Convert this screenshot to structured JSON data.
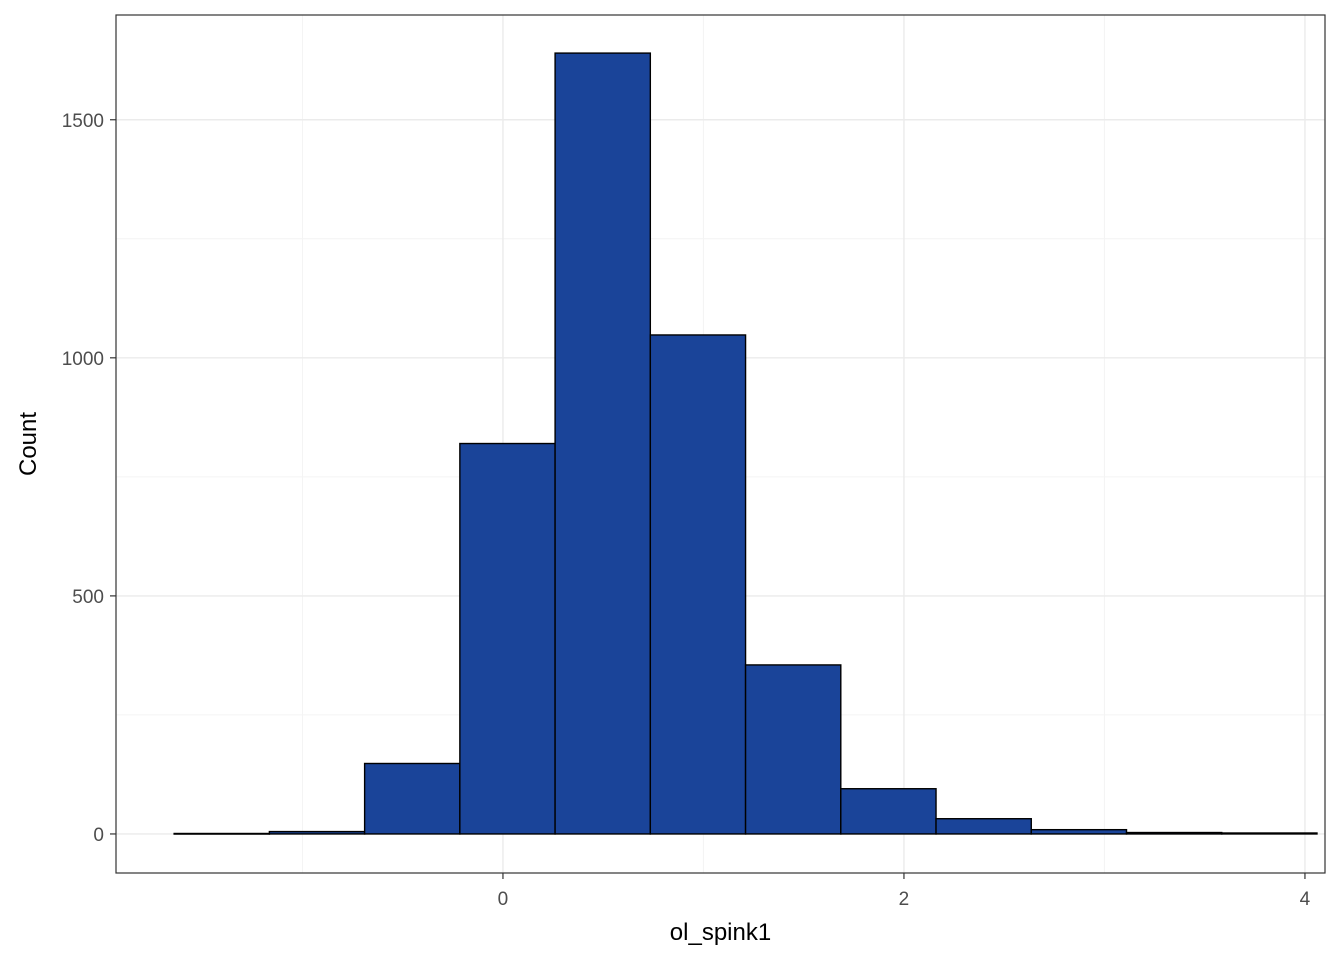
{
  "chart_data": {
    "type": "bar",
    "subtype": "histogram",
    "title": "",
    "xlabel": "ol_spink1",
    "ylabel": "Count",
    "xlim": [
      -1.93,
      4.1
    ],
    "ylim": [
      -82,
      1720
    ],
    "x_ticks": [
      0,
      2,
      4
    ],
    "x_tick_labels": [
      "0",
      "2",
      "4"
    ],
    "y_ticks": [
      0,
      500,
      1000,
      1500
    ],
    "y_tick_labels": [
      "0",
      "500",
      "1000",
      "1500"
    ],
    "x_minor_gridlines": [
      -1,
      1,
      3
    ],
    "y_minor_gridlines": [
      250,
      750,
      1250
    ],
    "bins": [
      {
        "x0": -1.64,
        "x1": -1.165,
        "count": 1
      },
      {
        "x0": -1.165,
        "x1": -0.69,
        "count": 5
      },
      {
        "x0": -0.69,
        "x1": -0.215,
        "count": 148
      },
      {
        "x0": -0.215,
        "x1": 0.26,
        "count": 820
      },
      {
        "x0": 0.26,
        "x1": 0.735,
        "count": 1640
      },
      {
        "x0": 0.735,
        "x1": 1.21,
        "count": 1048
      },
      {
        "x0": 1.21,
        "x1": 1.685,
        "count": 355
      },
      {
        "x0": 1.685,
        "x1": 2.16,
        "count": 95
      },
      {
        "x0": 2.16,
        "x1": 2.635,
        "count": 32
      },
      {
        "x0": 2.635,
        "x1": 3.11,
        "count": 9
      },
      {
        "x0": 3.11,
        "x1": 3.585,
        "count": 3
      },
      {
        "x0": 3.585,
        "x1": 4.06,
        "count": 2
      }
    ],
    "grid": true,
    "legend": "none",
    "colors": {
      "bar_fill": "#1a4499",
      "bar_outline": "#000000",
      "panel_border": "#333333",
      "grid_major": "#ebebeb",
      "grid_minor": "#f4f4f4",
      "tick_label": "#4d4d4d"
    }
  }
}
